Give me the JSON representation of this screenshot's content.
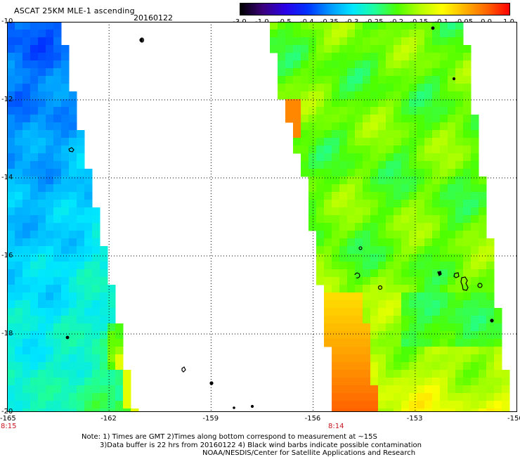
{
  "header": {
    "title": "ASCAT 25KM MLE-1 ascending",
    "date": "20160122"
  },
  "colorbar": {
    "labels": [
      "-3.0",
      "-1.0",
      "-0.5",
      "-0.4",
      "-0.35",
      "-0.3",
      "-0.25",
      "-0.2",
      "-0.15",
      "-0.1",
      "-0.05",
      "0.0",
      "1.0"
    ],
    "colors": [
      "#000000",
      "#3a007a",
      "#2a00e6",
      "#0032ff",
      "#0096ff",
      "#00e6ff",
      "#1eff9b",
      "#4dff00",
      "#b4ff00",
      "#ffff00",
      "#ffb400",
      "#ff6400",
      "#ff0000"
    ]
  },
  "map": {
    "lat_labels": [
      "-10",
      "-12",
      "-14",
      "-16",
      "-18",
      "-20"
    ],
    "lon_labels": [
      "-165",
      "-162",
      "-159",
      "-156",
      "-153",
      "-150"
    ],
    "pass_times": [
      "8:15",
      "8:14"
    ],
    "lat_range": [
      -20,
      -10
    ],
    "lon_range": [
      -165,
      -150
    ],
    "grid": true
  },
  "notes": [
    "Note: 1) Times are GMT 2)Times along bottom correspond to measurement at ~15S",
    "3)Data buffer is 22 hrs from 20160122 4) Black wind barbs indicate possible contamination",
    "NOAA/NESDIS/Center for Satellite Applications and Research"
  ]
}
